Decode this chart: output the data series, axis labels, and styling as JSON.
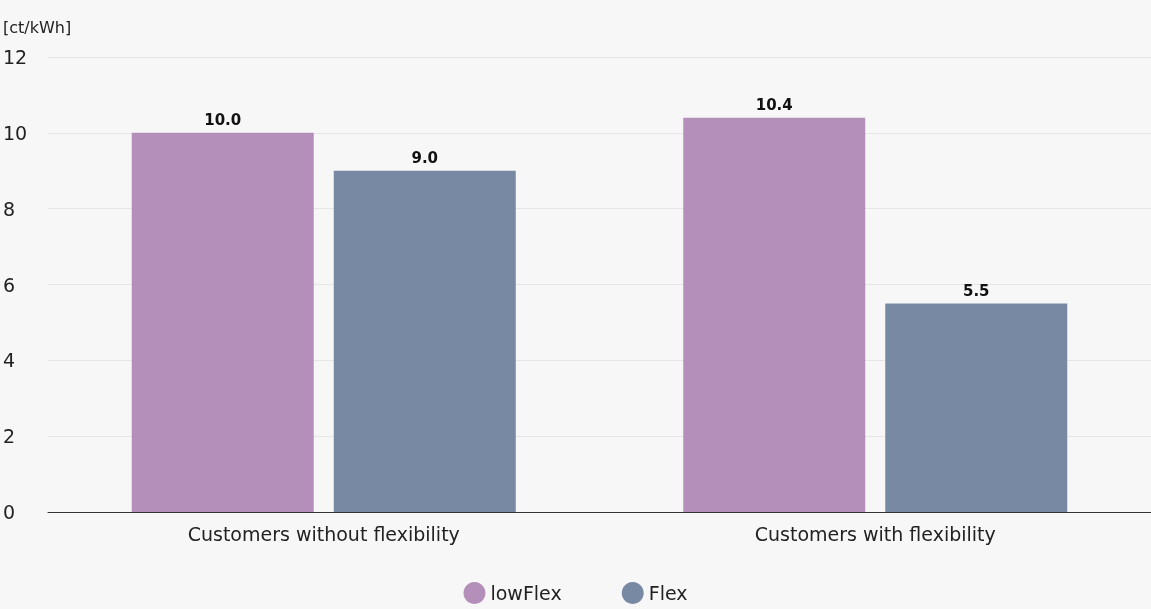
{
  "chart_data": {
    "type": "bar",
    "ylabel": "[ct/kWh]",
    "categories": [
      "Customers without flexibility",
      "Customers with flexibility"
    ],
    "series": [
      {
        "name": "lowFlex",
        "color": "#b48fb9",
        "values": [
          10.0,
          10.4
        ],
        "value_labels": [
          "10.0",
          "10.4"
        ]
      },
      {
        "name": "Flex",
        "color": "#7889a3",
        "values": [
          9.0,
          5.5
        ],
        "value_labels": [
          "9.0",
          "5.5"
        ]
      }
    ],
    "ylim": [
      0,
      12
    ],
    "yticks": [
      0,
      2,
      4,
      6,
      8,
      10,
      12
    ],
    "grid": "y",
    "legend": "bottom"
  }
}
